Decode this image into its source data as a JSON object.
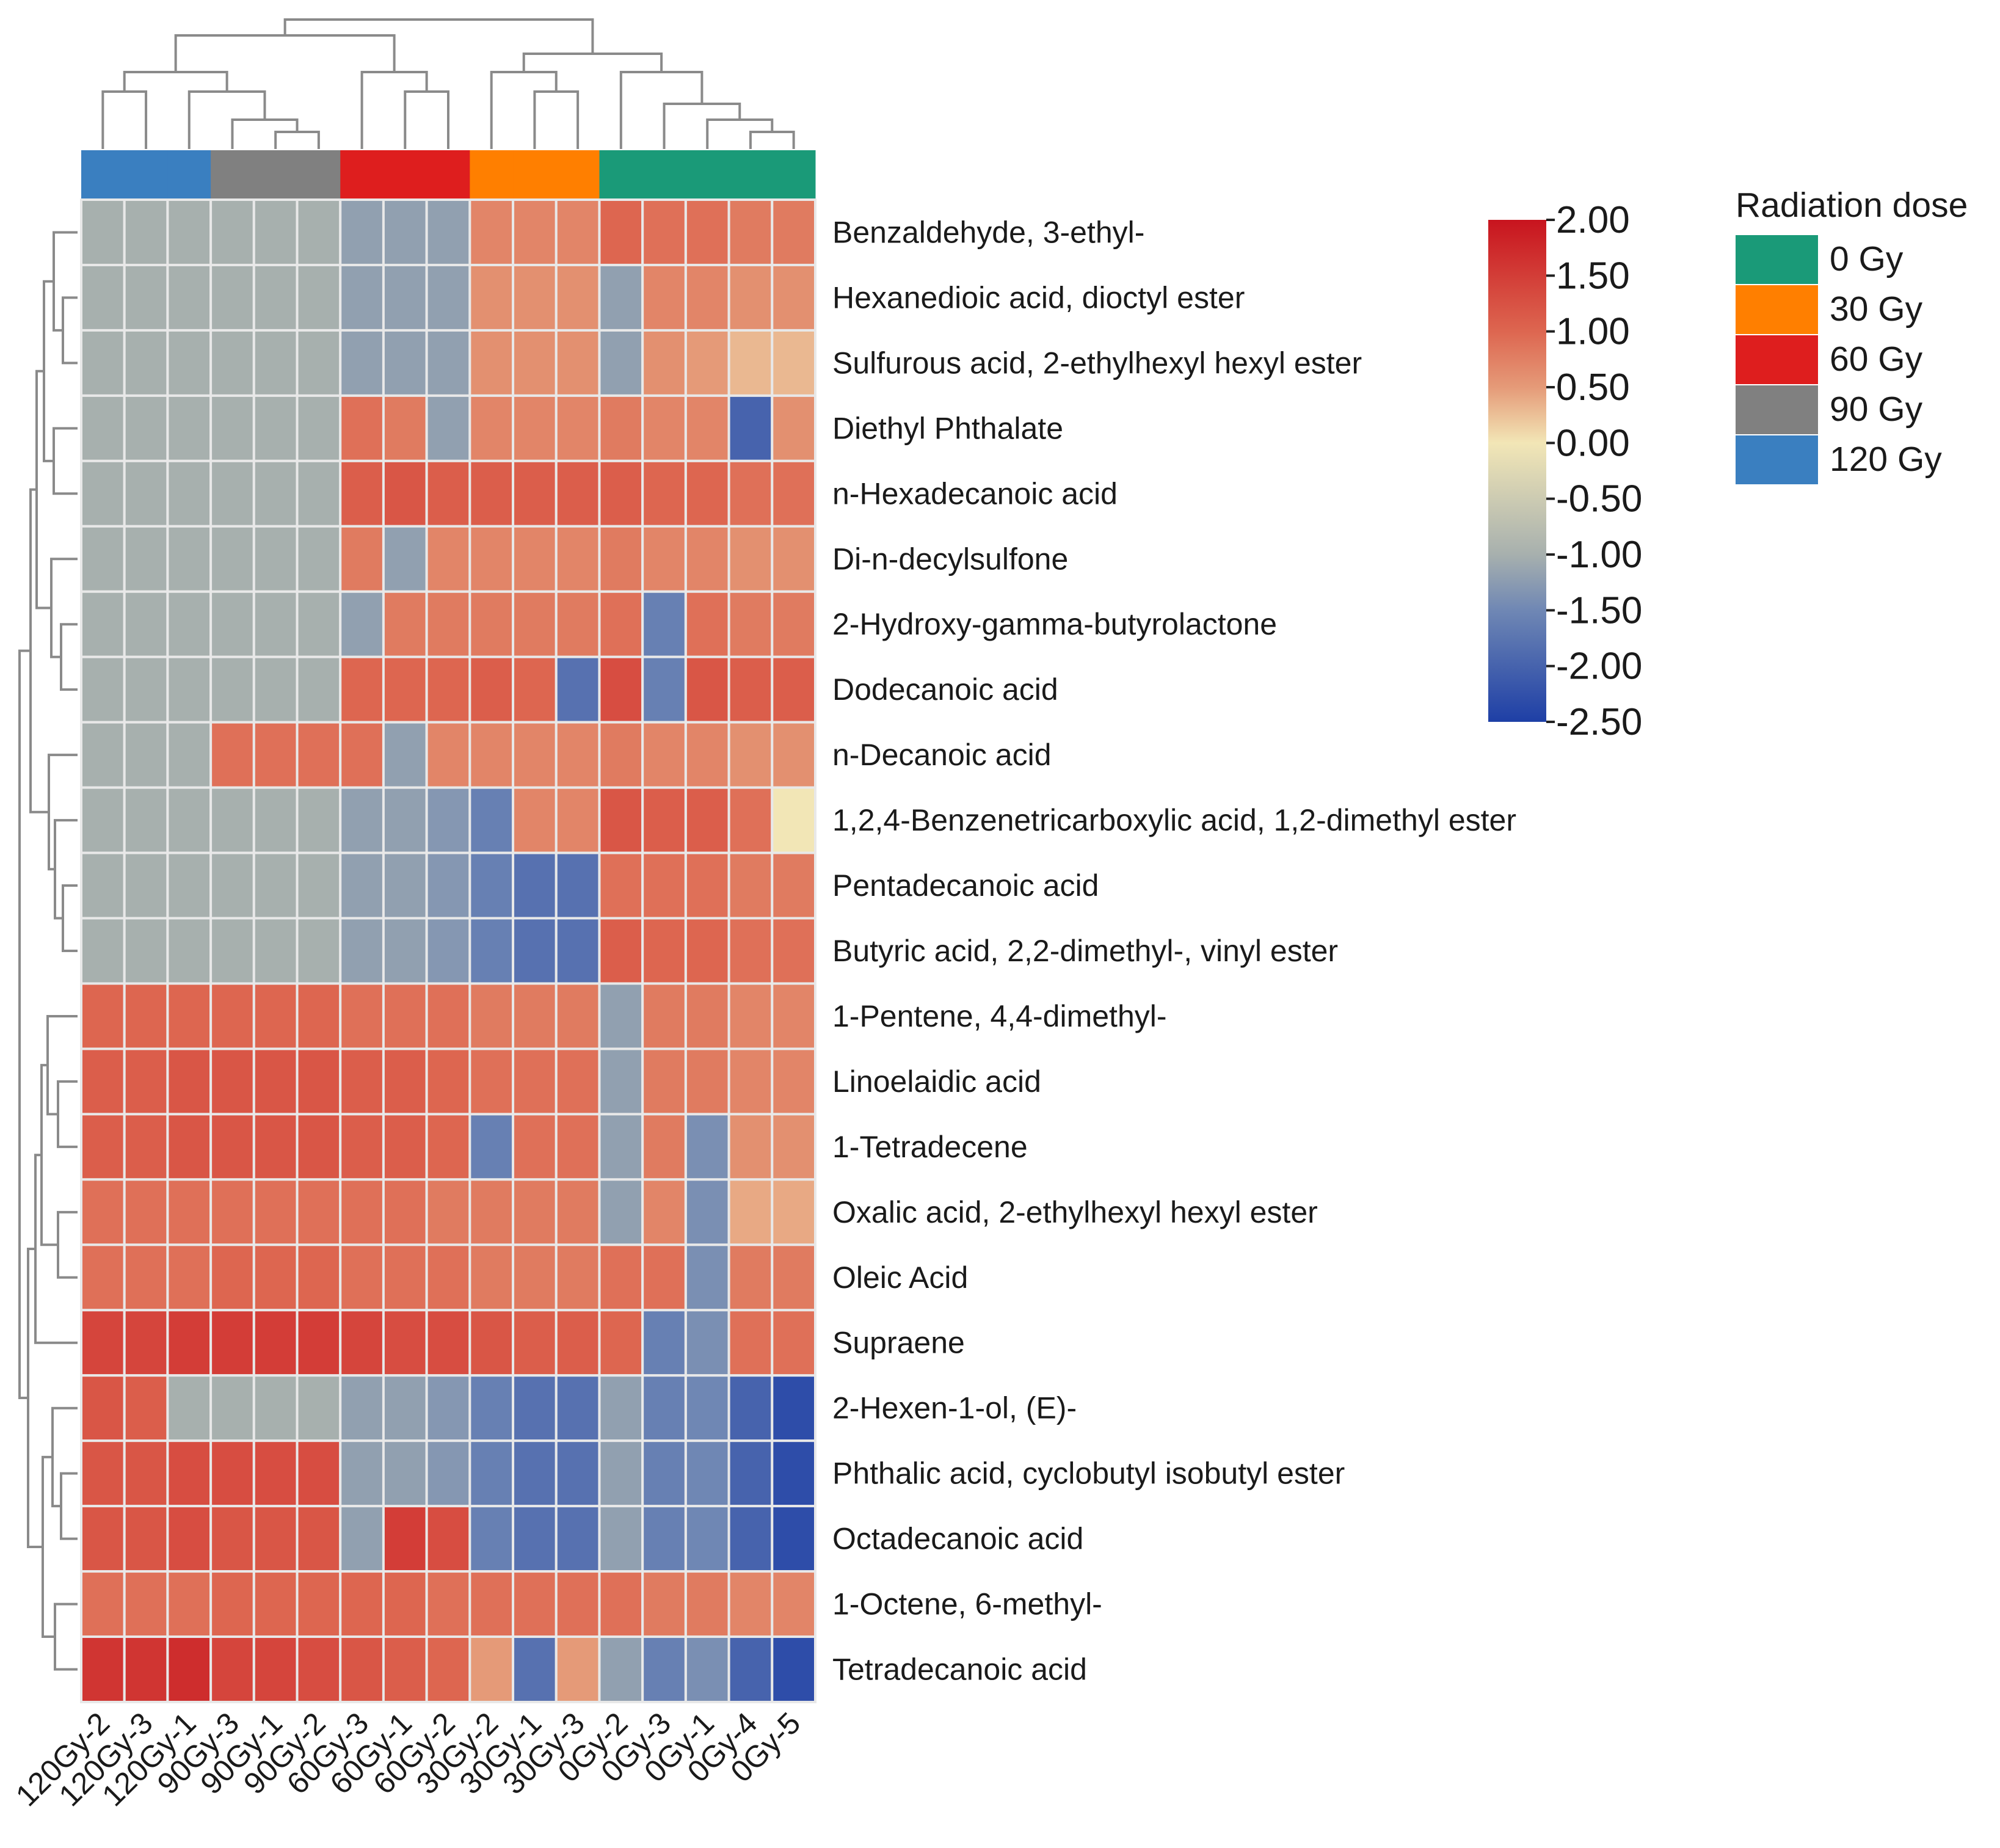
{
  "chart_data": {
    "type": "heatmap",
    "title": "",
    "columns": [
      "120Gy-2",
      "120Gy-3",
      "120Gy-1",
      "90Gy-3",
      "90Gy-1",
      "90Gy-2",
      "60Gy-3",
      "60Gy-1",
      "60Gy-2",
      "30Gy-2",
      "30Gy-1",
      "30Gy-3",
      "0Gy-2",
      "0Gy-3",
      "0Gy-1",
      "0Gy-4",
      "0Gy-5"
    ],
    "column_groups": [
      "120 Gy",
      "120 Gy",
      "120 Gy",
      "90 Gy",
      "90 Gy",
      "90 Gy",
      "60 Gy",
      "60 Gy",
      "60 Gy",
      "30 Gy",
      "30 Gy",
      "30 Gy",
      "0 Gy",
      "0 Gy",
      "0 Gy",
      "0 Gy",
      "0 Gy"
    ],
    "rows": [
      "Benzaldehyde, 3-ethyl-",
      "Hexanedioic acid, dioctyl ester",
      "Sulfurous acid, 2-ethylhexyl hexyl ester",
      "Diethyl Phthalate",
      "n-Hexadecanoic acid",
      "Di-n-decylsulfone",
      "2-Hydroxy-gamma-butyrolactone",
      "Dodecanoic acid",
      "n-Decanoic acid",
      "1,2,4-Benzenetricarboxylic acid, 1,2-dimethyl ester",
      "Pentadecanoic acid",
      "Butyric acid, 2,2-dimethyl-, vinyl ester",
      "1-Pentene, 4,4-dimethyl-",
      "Linoelaidic acid",
      "1-Tetradecene",
      "Oxalic acid, 2-ethylhexyl hexyl ester",
      "Oleic Acid",
      "Supraene",
      "2-Hexen-1-ol, (E)-",
      "Phthalic acid, cyclobutyl isobutyl ester",
      "Octadecanoic acid",
      "1-Octene, 6-methyl-",
      "Tetradecanoic acid"
    ],
    "values": [
      [
        -1.0,
        -1.0,
        -1.0,
        -1.0,
        -1.0,
        -1.0,
        -1.2,
        -1.2,
        -1.2,
        0.7,
        0.7,
        0.7,
        1.0,
        0.9,
        0.9,
        0.8,
        0.8
      ],
      [
        -1.0,
        -1.0,
        -1.0,
        -1.0,
        -1.0,
        -1.0,
        -1.2,
        -1.2,
        -1.2,
        0.6,
        0.6,
        0.6,
        -1.2,
        0.7,
        0.7,
        0.6,
        0.6
      ],
      [
        -1.0,
        -1.0,
        -1.0,
        -1.0,
        -1.0,
        -1.0,
        -1.2,
        -1.2,
        -1.2,
        0.6,
        0.6,
        0.6,
        -1.2,
        0.6,
        0.5,
        0.3,
        0.3
      ],
      [
        -1.0,
        -1.0,
        -1.0,
        -1.0,
        -1.0,
        -1.0,
        0.9,
        0.8,
        -1.2,
        0.7,
        0.7,
        0.7,
        0.8,
        0.7,
        0.7,
        -2.0,
        0.6
      ],
      [
        -1.0,
        -1.0,
        -1.0,
        -1.0,
        -1.0,
        -1.0,
        1.1,
        1.2,
        1.1,
        1.1,
        1.1,
        1.1,
        1.1,
        1.0,
        1.0,
        0.9,
        0.9
      ],
      [
        -1.0,
        -1.0,
        -1.0,
        -1.0,
        -1.0,
        -1.0,
        0.8,
        -1.2,
        0.7,
        0.7,
        0.7,
        0.7,
        0.8,
        0.7,
        0.7,
        0.6,
        0.6
      ],
      [
        -1.0,
        -1.0,
        -1.0,
        -1.0,
        -1.0,
        -1.0,
        -1.2,
        0.8,
        0.8,
        0.8,
        0.8,
        0.8,
        0.9,
        -1.6,
        0.9,
        0.8,
        0.8
      ],
      [
        -1.0,
        -1.0,
        -1.0,
        -1.0,
        -1.0,
        -1.0,
        1.0,
        1.0,
        1.0,
        1.1,
        1.0,
        -1.8,
        1.3,
        -1.6,
        1.2,
        1.1,
        1.1
      ],
      [
        -1.0,
        -1.0,
        -1.0,
        0.9,
        0.9,
        0.9,
        0.9,
        -1.2,
        0.7,
        0.7,
        0.7,
        0.7,
        0.8,
        0.7,
        0.7,
        0.6,
        0.6
      ],
      [
        -1.0,
        -1.0,
        -1.0,
        -1.0,
        -1.0,
        -1.0,
        -1.2,
        -1.2,
        -1.3,
        -1.6,
        0.7,
        0.7,
        1.2,
        1.1,
        1.1,
        0.9,
        0.0
      ],
      [
        -1.0,
        -1.0,
        -1.0,
        -1.0,
        -1.0,
        -1.0,
        -1.2,
        -1.2,
        -1.3,
        -1.6,
        -1.8,
        -1.8,
        0.9,
        0.9,
        0.9,
        0.8,
        0.8
      ],
      [
        -1.0,
        -1.0,
        -1.0,
        -1.0,
        -1.0,
        -1.0,
        -1.2,
        -1.2,
        -1.3,
        -1.6,
        -1.8,
        -1.8,
        1.1,
        1.0,
        1.0,
        0.9,
        0.9
      ],
      [
        1.0,
        1.0,
        1.0,
        1.0,
        1.0,
        1.0,
        0.9,
        0.9,
        0.9,
        0.8,
        0.8,
        0.8,
        -1.2,
        0.8,
        0.8,
        0.7,
        0.7
      ],
      [
        1.1,
        1.1,
        1.2,
        1.2,
        1.2,
        1.2,
        1.1,
        1.1,
        1.0,
        0.9,
        0.9,
        0.9,
        -1.2,
        0.8,
        0.8,
        0.7,
        0.7
      ],
      [
        1.1,
        1.1,
        1.2,
        1.2,
        1.2,
        1.2,
        1.1,
        1.1,
        1.0,
        -1.6,
        0.9,
        0.9,
        -1.2,
        0.8,
        -1.4,
        0.6,
        0.6
      ],
      [
        0.9,
        0.9,
        0.9,
        0.9,
        0.9,
        0.9,
        0.9,
        0.9,
        0.8,
        0.8,
        0.8,
        0.8,
        -1.2,
        0.7,
        -1.4,
        0.4,
        0.4
      ],
      [
        0.9,
        0.9,
        0.9,
        1.0,
        1.0,
        1.0,
        0.9,
        0.9,
        0.9,
        0.8,
        0.8,
        0.8,
        0.9,
        0.9,
        -1.4,
        0.8,
        0.8
      ],
      [
        1.4,
        1.4,
        1.5,
        1.5,
        1.5,
        1.5,
        1.4,
        1.3,
        1.3,
        1.2,
        1.1,
        1.1,
        1.0,
        -1.6,
        -1.4,
        0.9,
        0.9
      ],
      [
        1.2,
        1.1,
        -1.0,
        -1.0,
        -1.0,
        -1.0,
        -1.2,
        -1.2,
        -1.3,
        -1.6,
        -1.8,
        -1.8,
        -1.2,
        -1.6,
        -1.5,
        -2.0,
        -2.3
      ],
      [
        1.2,
        1.2,
        1.3,
        1.3,
        1.3,
        1.3,
        -1.2,
        -1.2,
        -1.3,
        -1.6,
        -1.8,
        -1.8,
        -1.2,
        -1.6,
        -1.5,
        -2.0,
        -2.3
      ],
      [
        1.2,
        1.2,
        1.3,
        1.2,
        1.2,
        1.2,
        -1.2,
        1.5,
        1.3,
        -1.6,
        -1.8,
        -1.8,
        -1.2,
        -1.6,
        -1.5,
        -2.0,
        -2.3
      ],
      [
        0.9,
        0.9,
        0.9,
        1.0,
        1.0,
        1.0,
        1.0,
        1.0,
        0.9,
        0.9,
        0.9,
        0.9,
        0.9,
        0.8,
        0.8,
        0.7,
        0.7
      ],
      [
        1.6,
        1.6,
        1.7,
        1.4,
        1.4,
        1.3,
        1.2,
        1.1,
        1.0,
        0.5,
        -1.8,
        0.5,
        -1.2,
        -1.6,
        -1.4,
        -2.0,
        -2.3
      ]
    ],
    "colorbar": {
      "min": -2.5,
      "max": 2.0,
      "ticks": [
        "2.00",
        "1.50",
        "1.00",
        "0.50",
        "0.00",
        "-0.50",
        "-1.00",
        "-1.50",
        "-2.00",
        "-2.50"
      ],
      "tick_values": [
        2.0,
        1.5,
        1.0,
        0.5,
        0.0,
        -0.5,
        -1.0,
        -1.5,
        -2.0,
        -2.5
      ],
      "stops": [
        {
          "value": 2.0,
          "color": "#c8141e"
        },
        {
          "value": 1.0,
          "color": "#dd6650"
        },
        {
          "value": 0.5,
          "color": "#e59a78"
        },
        {
          "value": 0.0,
          "color": "#f2e6b6"
        },
        {
          "value": -1.0,
          "color": "#a7b0ae"
        },
        {
          "value": -1.5,
          "color": "#6f87b4"
        },
        {
          "value": -2.5,
          "color": "#1e3fa6"
        }
      ]
    },
    "legend": {
      "title": "Radiation dose",
      "position": "top-right",
      "items": [
        {
          "label": "0 Gy",
          "color": "#1a9a78"
        },
        {
          "label": "30 Gy",
          "color": "#ff7f00"
        },
        {
          "label": "60 Gy",
          "color": "#de1e1e"
        },
        {
          "label": "90 Gy",
          "color": "#808080"
        },
        {
          "label": "120 Gy",
          "color": "#3a7fc0"
        }
      ]
    },
    "grid_color": "#e8e8e8",
    "dendrogram_color": "#8a8a8a"
  }
}
